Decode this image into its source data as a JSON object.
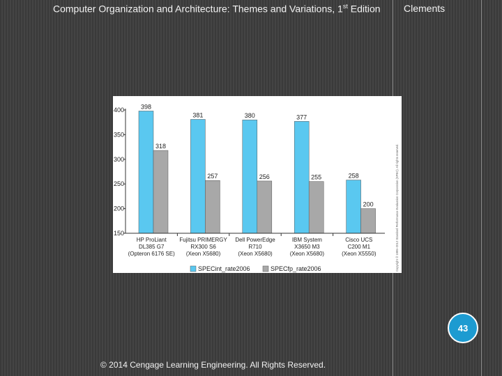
{
  "header": {
    "title_main": "Computer Organization and Architecture: Themes and Variations, 1",
    "title_sup": "st",
    "title_tail": " Edition",
    "author": "Clements"
  },
  "page_number": "43",
  "footer": "© 2014 Cengage Learning Engineering. All Rights Reserved.",
  "figure_note": "Copyright © 1995–2012 Standard Performance Evaluation Corporation (SPEC). All rights reserved.",
  "chart_data": {
    "type": "bar",
    "categories": [
      [
        "HP ProLiant",
        "DL385 G7",
        "(Opteron 6176 SE)"
      ],
      [
        "Fujitsu PRIMERGY",
        "RX300 S6",
        "(Xeon X5680)"
      ],
      [
        "Dell PowerEdge",
        "R710",
        "(Xeon X5680)"
      ],
      [
        "IBM System",
        "X3650 M3",
        "(Xeon X5680)"
      ],
      [
        "Cisco UCS",
        "C200 M1",
        "(Xeon X5550)"
      ]
    ],
    "series": [
      {
        "name": "SPECint_rate2006",
        "values": [
          398,
          381,
          380,
          377,
          258
        ],
        "color": "#5ac8f0"
      },
      {
        "name": "SPECfp_rate2006",
        "values": [
          318,
          257,
          256,
          255,
          200
        ],
        "color": "#a8a8a8"
      }
    ],
    "ylim": [
      150,
      400
    ],
    "yticks": [
      150,
      200,
      250,
      300,
      350,
      400
    ],
    "grid": false,
    "legend_position": "bottom"
  }
}
